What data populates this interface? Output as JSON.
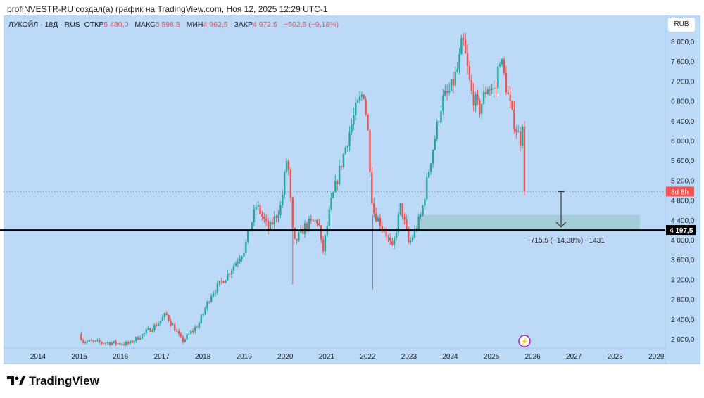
{
  "credit": "profINVESTR-RU создал(а) график на TradingView.com, Ноя 12, 2025 12:29 UTC-1",
  "legend": {
    "symbol": "ЛУКОЙЛ · 18Д · RUS",
    "open_label": "ОТКР",
    "open": "5 480,0",
    "high_label": "МАКС",
    "high": "5 598,5",
    "low_label": "МИН",
    "low": "4 962,5",
    "close_label": "ЗАКР",
    "close": "4 972,5",
    "change": "−502,5 (−9,18%)"
  },
  "currency": "RUB",
  "countdown": "8d 8h",
  "level_label": "4 197,5",
  "measure_label": "−715,5 (−14,38%) −1431",
  "logo": "TradingView",
  "colors": {
    "up": "#26a69a",
    "down": "#ef5350",
    "bg": "#bcdaf7"
  },
  "chart_data": {
    "type": "candlestick",
    "title": "ЛУКОЙЛ · 18Д · RUS",
    "ylim": [
      1800,
      8400
    ],
    "yticks": [
      "8 000,0",
      "7 600,0",
      "7 200,0",
      "6 800,0",
      "6 400,0",
      "6 000,0",
      "5 600,0",
      "5 200,0",
      "4 800,0",
      "4 400,0",
      "4 000,0",
      "3 600,0",
      "3 200,0",
      "2 800,0",
      "2 400,0",
      "2 000,0"
    ],
    "ytick_values": [
      8000,
      7600,
      7200,
      6800,
      6400,
      6000,
      5600,
      5200,
      4800,
      4400,
      4000,
      3600,
      3200,
      2800,
      2400,
      2000
    ],
    "xticks": [
      "2014",
      "2015",
      "2016",
      "2017",
      "2018",
      "2019",
      "2020",
      "2021",
      "2022",
      "2023",
      "2024",
      "2025",
      "2026",
      "2027",
      "2028",
      "2029"
    ],
    "close_path": [
      [
        2015.0,
        2100
      ],
      [
        2015.1,
        1950
      ],
      [
        2016.2,
        1900
      ],
      [
        2016.9,
        2300
      ],
      [
        2017.1,
        2500
      ],
      [
        2017.5,
        1950
      ],
      [
        2017.9,
        2300
      ],
      [
        2018.2,
        2900
      ],
      [
        2018.6,
        3300
      ],
      [
        2019.0,
        3800
      ],
      [
        2019.3,
        4700
      ],
      [
        2019.6,
        4200
      ],
      [
        2019.9,
        4700
      ],
      [
        2020.05,
        5750
      ],
      [
        2020.2,
        3900
      ],
      [
        2020.5,
        4300
      ],
      [
        2020.8,
        4400
      ],
      [
        2020.9,
        3700
      ],
      [
        2021.1,
        4700
      ],
      [
        2021.5,
        6000
      ],
      [
        2021.7,
        6600
      ],
      [
        2021.9,
        7000
      ],
      [
        2022.0,
        6200
      ],
      [
        2022.12,
        4600
      ],
      [
        2022.4,
        4200
      ],
      [
        2022.6,
        3800
      ],
      [
        2022.8,
        4700
      ],
      [
        2023.0,
        3900
      ],
      [
        2023.3,
        4500
      ],
      [
        2023.5,
        5500
      ],
      [
        2023.8,
        6800
      ],
      [
        2024.0,
        7000
      ],
      [
        2024.2,
        7500
      ],
      [
        2024.3,
        8050
      ],
      [
        2024.5,
        7000
      ],
      [
        2024.7,
        6600
      ],
      [
        2024.9,
        7100
      ],
      [
        2025.1,
        7000
      ],
      [
        2025.2,
        7750
      ],
      [
        2025.5,
        6500
      ],
      [
        2025.7,
        6000
      ],
      [
        2025.76,
        6500
      ],
      [
        2025.81,
        4972.5
      ]
    ],
    "last_close": 4972.5,
    "horizontal_level": 4197.5,
    "zone": {
      "from_year": 2023.2,
      "to_year": 2028.6,
      "low": 4197.5,
      "high": 4500
    },
    "measure": {
      "from": 4972.5,
      "to": 4257,
      "change": -715.5,
      "percent": -14.38,
      "bars": -1431
    }
  }
}
